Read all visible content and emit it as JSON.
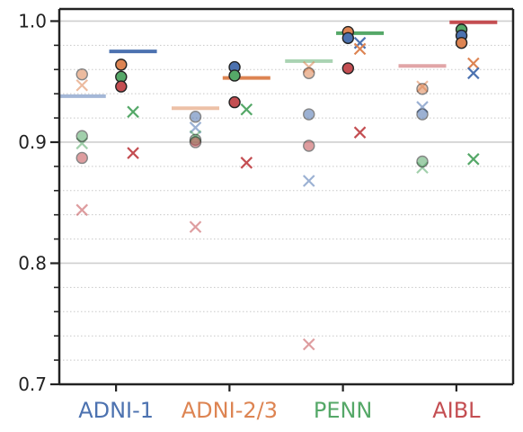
{
  "chart_data": {
    "type": "scatter",
    "title": "",
    "xlabel": "",
    "ylabel": "",
    "ylim": [
      0.7,
      1.01
    ],
    "y_ticks": [
      "0.7",
      "0.8",
      "0.9",
      "1.0"
    ],
    "y_minor_step": 0.02,
    "grid": "major solid, minor dotted",
    "categories": [
      "ADNI-1",
      "ADNI-2/3",
      "PENN",
      "AIBL"
    ],
    "category_colors": [
      "#4c72b0",
      "#dd8452",
      "#55a868",
      "#c44e52"
    ],
    "series_colors": {
      "ADNI-1": "#4c72b0",
      "ADNI-2/3": "#dd8452",
      "PENN": "#55a868",
      "AIBL": "#c44e52"
    },
    "groups": [
      {
        "category": "ADNI-1",
        "left": {
          "median": 0.938,
          "circles": [
            {
              "series": "ADNI-2/3",
              "value": 0.956
            },
            {
              "series": "PENN",
              "value": 0.905
            },
            {
              "series": "AIBL",
              "value": 0.887
            }
          ],
          "crosses": [
            {
              "series": "ADNI-2/3",
              "value": 0.947
            },
            {
              "series": "PENN",
              "value": 0.899
            },
            {
              "series": "AIBL",
              "value": 0.844
            }
          ]
        },
        "right": {
          "median": 0.975,
          "circles": [
            {
              "series": "ADNI-2/3",
              "value": 0.964
            },
            {
              "series": "PENN",
              "value": 0.954
            },
            {
              "series": "AIBL",
              "value": 0.946
            }
          ],
          "crosses": [
            {
              "series": "PENN",
              "value": 0.925
            },
            {
              "series": "AIBL",
              "value": 0.891
            }
          ]
        }
      },
      {
        "category": "ADNI-2/3",
        "left": {
          "median": 0.928,
          "circles": [
            {
              "series": "ADNI-1",
              "value": 0.921
            },
            {
              "series": "PENN",
              "value": 0.902
            },
            {
              "series": "AIBL",
              "value": 0.9
            }
          ],
          "crosses": [
            {
              "series": "ADNI-1",
              "value": 0.912
            },
            {
              "series": "PENN",
              "value": 0.905
            },
            {
              "series": "AIBL",
              "value": 0.83
            }
          ]
        },
        "right": {
          "median": 0.953,
          "circles": [
            {
              "series": "ADNI-1",
              "value": 0.962
            },
            {
              "series": "PENN",
              "value": 0.955
            },
            {
              "series": "AIBL",
              "value": 0.933
            }
          ],
          "crosses": [
            {
              "series": "PENN",
              "value": 0.927
            },
            {
              "series": "AIBL",
              "value": 0.883
            }
          ]
        }
      },
      {
        "category": "PENN",
        "left": {
          "median": 0.967,
          "circles": [
            {
              "series": "ADNI-2/3",
              "value": 0.957
            },
            {
              "series": "ADNI-1",
              "value": 0.923
            },
            {
              "series": "AIBL",
              "value": 0.897
            }
          ],
          "crosses": [
            {
              "series": "ADNI-2/3",
              "value": 0.962
            },
            {
              "series": "ADNI-1",
              "value": 0.868
            },
            {
              "series": "AIBL",
              "value": 0.733
            }
          ]
        },
        "right": {
          "median": 0.99,
          "circles": [
            {
              "series": "ADNI-2/3",
              "value": 0.991
            },
            {
              "series": "ADNI-1",
              "value": 0.986
            },
            {
              "series": "AIBL",
              "value": 0.961
            }
          ],
          "crosses": [
            {
              "series": "ADNI-1",
              "value": 0.982
            },
            {
              "series": "ADNI-2/3",
              "value": 0.977
            },
            {
              "series": "AIBL",
              "value": 0.908
            }
          ]
        }
      },
      {
        "category": "AIBL",
        "left": {
          "median": 0.963,
          "circles": [
            {
              "series": "ADNI-2/3",
              "value": 0.944
            },
            {
              "series": "ADNI-1",
              "value": 0.923
            },
            {
              "series": "PENN",
              "value": 0.884
            }
          ],
          "crosses": [
            {
              "series": "ADNI-2/3",
              "value": 0.946
            },
            {
              "series": "ADNI-1",
              "value": 0.929
            },
            {
              "series": "PENN",
              "value": 0.879
            }
          ]
        },
        "right": {
          "median": 0.999,
          "circles": [
            {
              "series": "PENN",
              "value": 0.993
            },
            {
              "series": "ADNI-1",
              "value": 0.988
            },
            {
              "series": "ADNI-2/3",
              "value": 0.982
            }
          ],
          "crosses": [
            {
              "series": "ADNI-2/3",
              "value": 0.965
            },
            {
              "series": "ADNI-1",
              "value": 0.957
            },
            {
              "series": "PENN",
              "value": 0.886
            }
          ]
        }
      }
    ]
  }
}
